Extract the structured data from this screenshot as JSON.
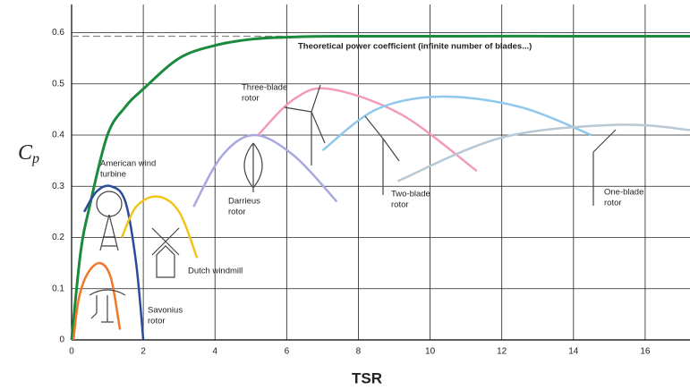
{
  "chart_data": {
    "type": "line",
    "xlabel": "TSR",
    "ylabel": {
      "symbol": "C",
      "subscript": "p"
    },
    "xlim": [
      0,
      17.25
    ],
    "ylim": [
      0,
      0.655
    ],
    "xticks": [
      0,
      2,
      4,
      6,
      8,
      10,
      12,
      14,
      16
    ],
    "yticks": [
      0,
      0.1,
      0.2,
      0.3,
      0.4,
      0.5,
      0.6
    ],
    "grid": true,
    "limit_line": {
      "value": 0.593,
      "color": "#888888"
    },
    "series": [
      {
        "name_lines": [
          "Theoretical power coefficient (infinite number of blades...)"
        ],
        "color": "#1a8a3c",
        "x": [
          0,
          0.25,
          0.5,
          1,
          1.5,
          2,
          3,
          4,
          5,
          6,
          8,
          17.25
        ],
        "values": [
          0,
          0.17,
          0.26,
          0.4,
          0.455,
          0.49,
          0.55,
          0.575,
          0.587,
          0.591,
          0.593,
          0.593
        ]
      },
      {
        "name_lines": [
          "Savonius",
          "rotor"
        ],
        "color": "#f07828",
        "x": [
          0.05,
          0.2,
          0.45,
          0.8,
          1.1,
          1.35
        ],
        "values": [
          0,
          0.08,
          0.13,
          0.15,
          0.12,
          0.02
        ]
      },
      {
        "name_lines": [
          "American wind",
          "turbine"
        ],
        "color": "#2a4a9a",
        "x": [
          0.35,
          0.7,
          1.1,
          1.5,
          1.8,
          2.0
        ],
        "values": [
          0.25,
          0.29,
          0.3,
          0.27,
          0.15,
          0
        ]
      },
      {
        "name_lines": [
          "Dutch windmill"
        ],
        "color": "#f2c418",
        "x": [
          1.4,
          1.8,
          2.4,
          3.0,
          3.5
        ],
        "values": [
          0.2,
          0.26,
          0.28,
          0.25,
          0.16
        ]
      },
      {
        "name_lines": [
          "Darrieus",
          "rotor"
        ],
        "color": "#a8a8e0",
        "x": [
          3.4,
          4.2,
          5.1,
          6.2,
          7.4
        ],
        "values": [
          0.26,
          0.36,
          0.4,
          0.36,
          0.27
        ]
      },
      {
        "name_lines": [
          "Three-blade",
          "rotor"
        ],
        "color": "#f29ab8",
        "x": [
          5.2,
          6.2,
          7.2,
          9.2,
          11.3
        ],
        "values": [
          0.4,
          0.47,
          0.49,
          0.44,
          0.33
        ]
      },
      {
        "name_lines": [
          "Two-blade",
          "rotor"
        ],
        "color": "#90c8ec",
        "x": [
          7,
          8.5,
          10.3,
          12.5,
          14.5
        ],
        "values": [
          0.37,
          0.45,
          0.475,
          0.455,
          0.4
        ]
      },
      {
        "name_lines": [
          "One-blade",
          "rotor"
        ],
        "color": "#b8c8d4",
        "x": [
          9.1,
          12,
          15.2,
          17.25
        ],
        "values": [
          0.31,
          0.395,
          0.42,
          0.41
        ]
      }
    ]
  }
}
